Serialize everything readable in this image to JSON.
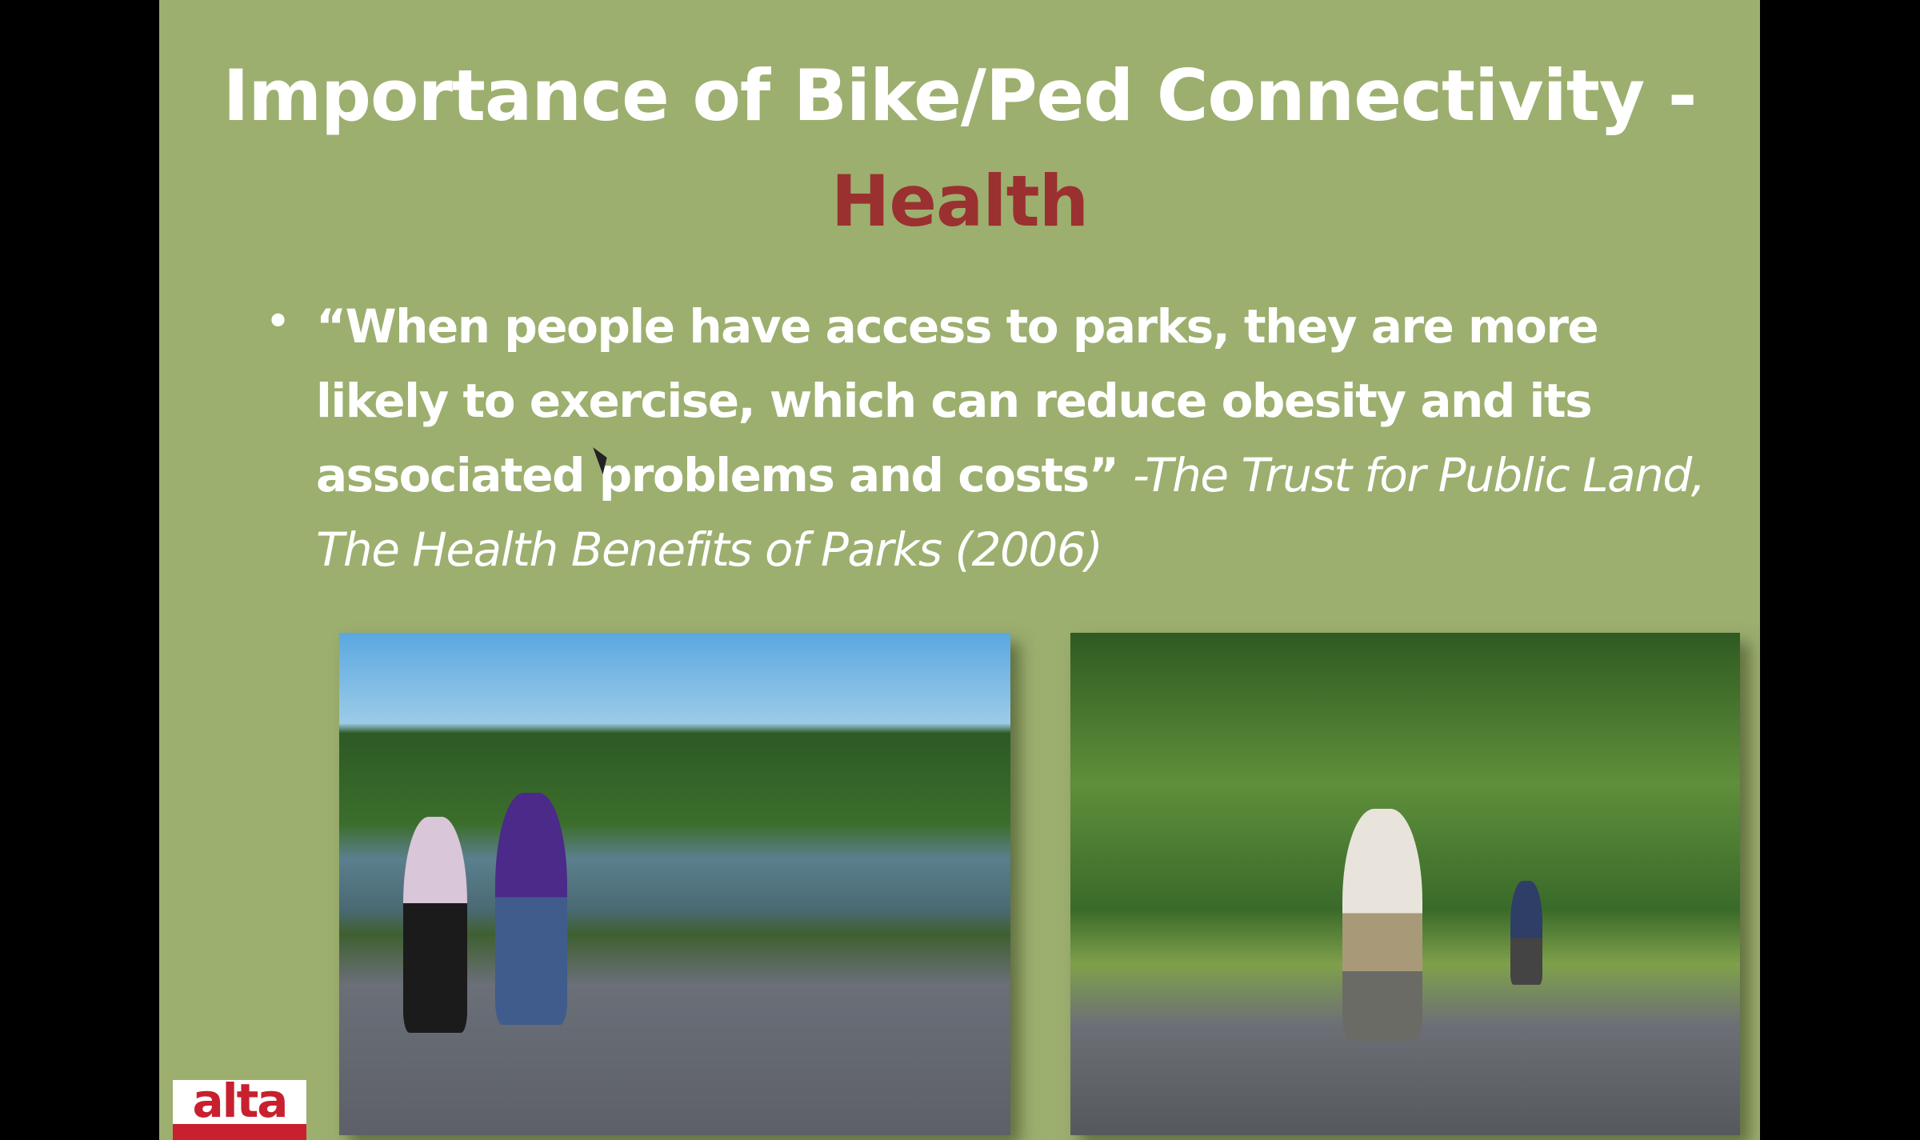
{
  "slide": {
    "title_line1": "Importance of Bike/Ped Connectivity -",
    "title_line2": "Health",
    "bullet_char": "•",
    "quote_bold": "“When people have access to parks, they are more likely to exercise, which can reduce obesity and its associated problems and costs” ",
    "quote_citation": "-The Trust for Public Land, The Health Benefits of Parks (2006)",
    "logo_text": "alta",
    "colors": {
      "background": "#9caf6f",
      "title": "#ffffff",
      "accent": "#9b3030",
      "logo": "#c8202e"
    }
  }
}
